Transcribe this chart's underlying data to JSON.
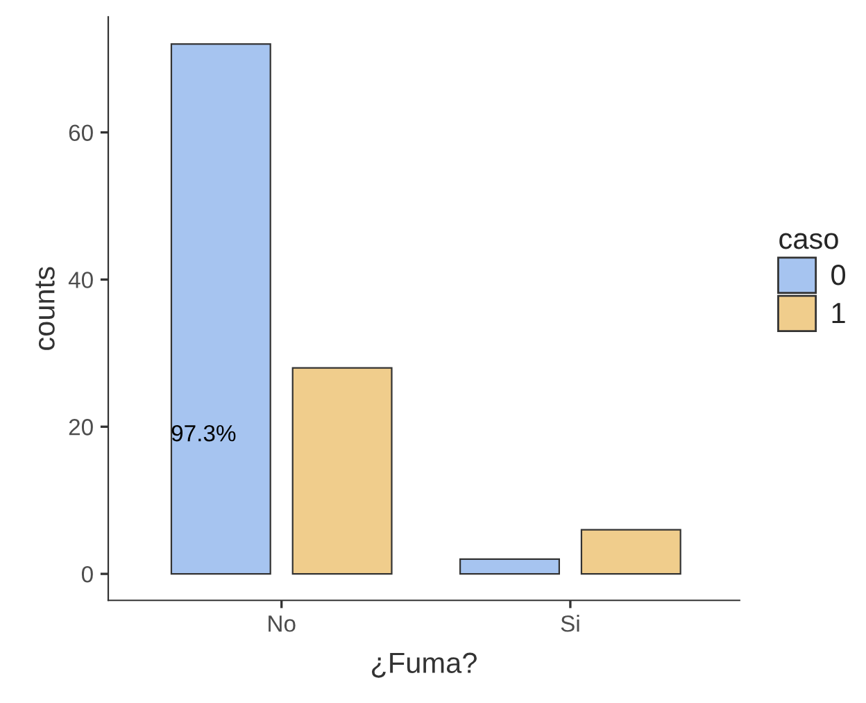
{
  "chart_data": {
    "type": "bar",
    "xlabel": "¿Fuma?",
    "ylabel": "counts",
    "legend_title": "caso",
    "categories": [
      "No",
      "Si"
    ],
    "series": [
      {
        "name": "0",
        "color": "#a6c4f0",
        "values": [
          72,
          2
        ]
      },
      {
        "name": "1",
        "color": "#f0cd8c",
        "values": [
          28,
          6
        ]
      }
    ],
    "ylim": [
      -3.6,
      75.7
    ],
    "yticks": [
      0,
      20,
      40,
      60
    ],
    "grid": false,
    "legend": "right",
    "annotations": [
      "97.3%"
    ]
  }
}
